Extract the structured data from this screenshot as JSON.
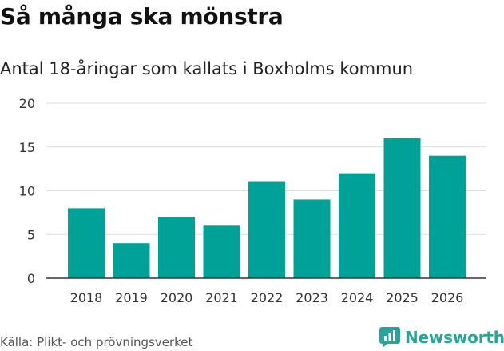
{
  "header": {
    "title": "Så många ska mönstra",
    "subtitle": "Antal 18-åringar som kallats i Boxholms kommun"
  },
  "footer": {
    "source": "Källa: Plikt- och prövningsverket",
    "brand": "Newsworthy",
    "brand_icon": "newsworthy-logo-icon"
  },
  "colors": {
    "bar": "#00a297",
    "grid": "#dcdcdc",
    "baseline": "#333333",
    "brand": "#26a69a"
  },
  "chart_data": {
    "type": "bar",
    "title": "Så många ska mönstra",
    "subtitle": "Antal 18-åringar som kallats i Boxholms kommun",
    "xlabel": "",
    "ylabel": "",
    "categories": [
      "2018",
      "2019",
      "2020",
      "2021",
      "2022",
      "2023",
      "2024",
      "2025",
      "2026"
    ],
    "values": [
      8,
      4,
      7,
      6,
      11,
      9,
      12,
      16,
      14
    ],
    "ylim": [
      0,
      20
    ],
    "yticks": [
      0,
      5,
      10,
      15,
      20
    ],
    "grid": true,
    "legend": "none"
  }
}
